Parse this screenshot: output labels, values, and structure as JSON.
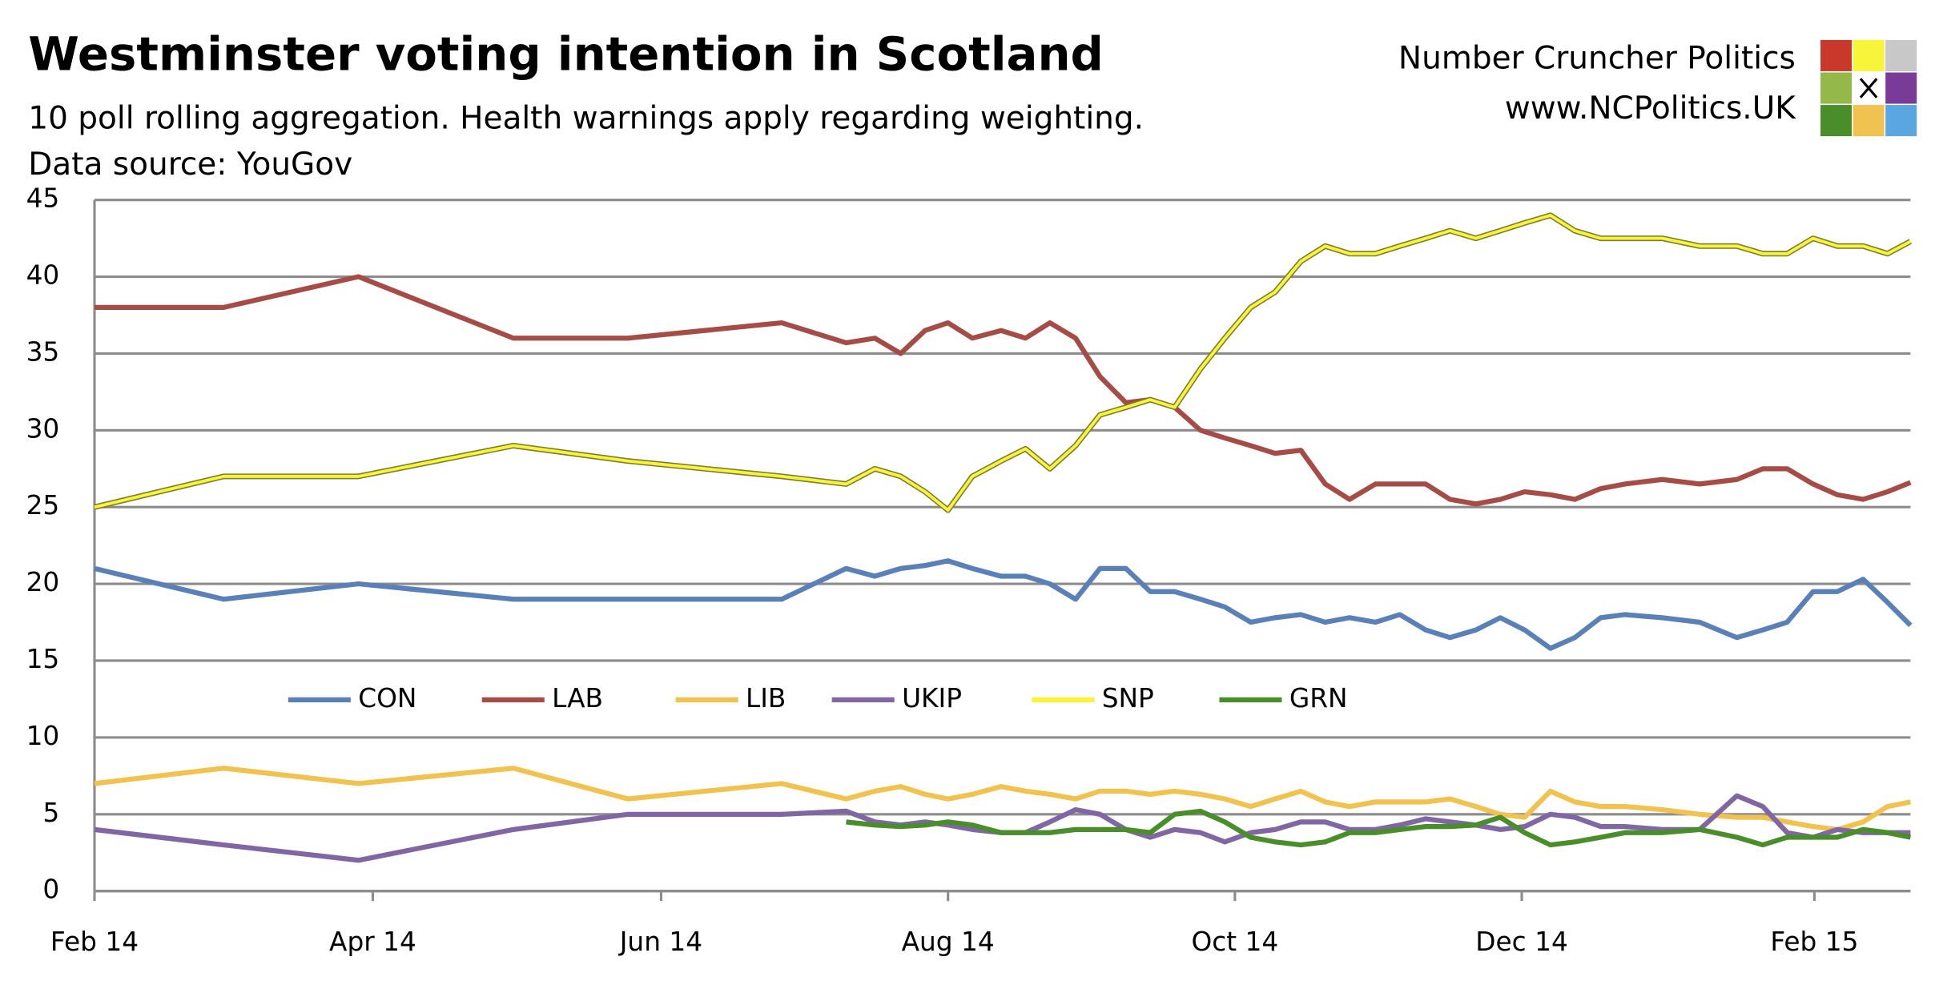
{
  "chart_data": {
    "type": "line",
    "title": "Westminster voting intention in Scotland",
    "subtitle": "10 poll rolling aggregation. Health warnings apply regarding weighting.",
    "source": "Data source: YouGov",
    "x": [
      0,
      0.9,
      1.84,
      2.92,
      3.72,
      4.79,
      5.24,
      5.44,
      5.62,
      5.79,
      5.95,
      6.12,
      6.32,
      6.49,
      6.66,
      6.84,
      7.01,
      7.19,
      7.36,
      7.53,
      7.71,
      7.88,
      8.06,
      8.23,
      8.41,
      8.58,
      8.75,
      8.93,
      9.1,
      9.28,
      9.45,
      9.63,
      9.8,
      9.97,
      10.15,
      10.32,
      10.5,
      10.67,
      10.93,
      11.19,
      11.45,
      11.63,
      11.8,
      11.98,
      12.15,
      12.33,
      12.5,
      12.66
    ],
    "xlim": [
      0,
      12.66
    ],
    "xticks": [
      {
        "value": 0,
        "label": "Feb 14"
      },
      {
        "value": 1.94,
        "label": "Apr 14"
      },
      {
        "value": 3.95,
        "label": "Jun 14"
      },
      {
        "value": 5.95,
        "label": "Aug 14"
      },
      {
        "value": 7.95,
        "label": "Oct 14"
      },
      {
        "value": 9.95,
        "label": "Dec 14"
      },
      {
        "value": 11.99,
        "label": "Feb 15"
      }
    ],
    "ylim": [
      0,
      45
    ],
    "yticks": [
      0,
      5,
      10,
      15,
      20,
      25,
      30,
      35,
      40,
      45
    ],
    "grid": true,
    "series": [
      {
        "name": "CON",
        "color": "#5a80b8",
        "values": [
          21,
          19,
          20,
          19,
          19,
          19,
          21,
          20.5,
          21,
          21.2,
          21.5,
          21,
          20.5,
          20.5,
          20,
          19,
          21,
          21,
          19.5,
          19.5,
          19,
          18.5,
          17.5,
          17.8,
          18,
          17.5,
          17.8,
          17.5,
          18,
          17,
          16.5,
          17,
          17.8,
          17,
          15.8,
          16.5,
          17.8,
          18,
          17.8,
          17.5,
          16.5,
          17,
          17.5,
          19.5,
          19.5,
          20.3,
          18.8,
          17.3
        ]
      },
      {
        "name": "LAB",
        "color": "#a64c46",
        "values": [
          38,
          38,
          40,
          36,
          36,
          37,
          35.7,
          36,
          35,
          36.5,
          37,
          36,
          36.5,
          36,
          37,
          36,
          33.5,
          31.8,
          32,
          31.5,
          30,
          29.5,
          29,
          28.5,
          28.7,
          26.5,
          25.5,
          26.5,
          26.5,
          26.5,
          25.5,
          25.2,
          25.5,
          26,
          25.8,
          25.5,
          26.2,
          26.5,
          26.8,
          26.5,
          26.8,
          27.5,
          27.5,
          26.5,
          25.8,
          25.5,
          26,
          26.6
        ]
      },
      {
        "name": "LIB",
        "color": "#f0c24f",
        "values": [
          7,
          8,
          7,
          8,
          6,
          7,
          6,
          6.5,
          6.8,
          6.3,
          6,
          6.3,
          6.8,
          6.5,
          6.3,
          6,
          6.5,
          6.5,
          6.3,
          6.5,
          6.3,
          6,
          5.5,
          6,
          6.5,
          5.8,
          5.5,
          5.8,
          5.8,
          5.8,
          6,
          5.5,
          5,
          4.8,
          6.5,
          5.8,
          5.5,
          5.5,
          5.3,
          5,
          4.8,
          4.8,
          4.5,
          4.2,
          4,
          4.5,
          5.5,
          5.8
        ]
      },
      {
        "name": "UKIP",
        "color": "#8166a4",
        "values": [
          4,
          3,
          2,
          4,
          5,
          5,
          5.2,
          4.5,
          4.3,
          4.5,
          4.3,
          4,
          3.8,
          3.8,
          4.5,
          5.3,
          5,
          4,
          3.5,
          4,
          3.8,
          3.2,
          3.8,
          4,
          4.5,
          4.5,
          4,
          4,
          4.3,
          4.7,
          4.5,
          4.3,
          4,
          4.2,
          5,
          4.8,
          4.2,
          4.2,
          4,
          4,
          6.2,
          5.5,
          3.8,
          3.5,
          4,
          3.8,
          3.8,
          3.8
        ]
      },
      {
        "name": "SNP",
        "color": "#f8f43a",
        "values": [
          25,
          27,
          27,
          29,
          28,
          27,
          26.5,
          27.5,
          27,
          26,
          24.8,
          27,
          28,
          28.8,
          27.5,
          29,
          31,
          31.5,
          32,
          31.5,
          34,
          36,
          38,
          39,
          41,
          42,
          41.5,
          41.5,
          42,
          42.5,
          43,
          42.5,
          43,
          43.5,
          44,
          43,
          42.5,
          42.5,
          42.5,
          42,
          42,
          41.5,
          41.5,
          42.5,
          42,
          42,
          41.5,
          42.3
        ]
      },
      {
        "name": "GRN",
        "color": "#4a8e2c",
        "values": [
          null,
          null,
          null,
          null,
          null,
          null,
          4.5,
          4.3,
          4.2,
          4.3,
          4.5,
          4.3,
          3.8,
          3.8,
          3.8,
          4,
          4,
          4,
          3.8,
          5,
          5.2,
          4.5,
          3.5,
          3.2,
          3,
          3.2,
          3.8,
          3.8,
          4,
          4.2,
          4.2,
          4.3,
          4.8,
          3.8,
          3,
          3.2,
          3.5,
          3.8,
          3.8,
          4,
          3.5,
          3,
          3.5,
          3.5,
          3.5,
          4,
          3.8,
          3.5
        ]
      }
    ]
  },
  "branding": {
    "name": "Number Cruncher Politics",
    "url": "www.NCPolitics.UK"
  }
}
